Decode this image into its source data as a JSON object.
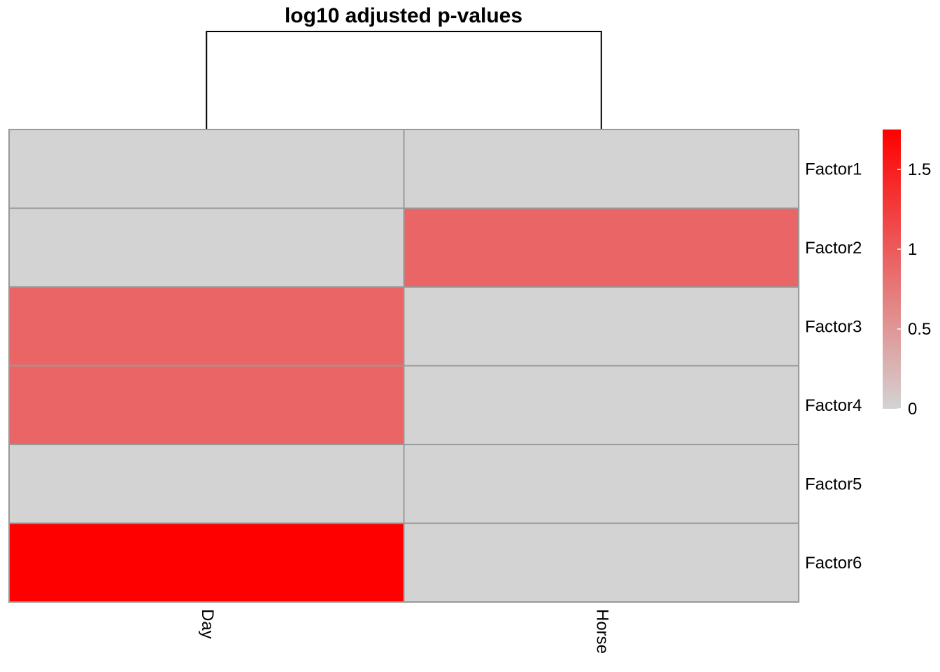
{
  "chart_data": {
    "type": "heatmap",
    "title": "log10 adjusted p-values",
    "rows": [
      "Factor1",
      "Factor2",
      "Factor3",
      "Factor4",
      "Factor5",
      "Factor6"
    ],
    "columns": [
      "Day",
      "Horse"
    ],
    "values": [
      [
        0.0,
        0.0
      ],
      [
        0.0,
        0.9
      ],
      [
        0.9,
        0.0
      ],
      [
        0.9,
        0.0
      ],
      [
        0.0,
        0.0
      ],
      [
        1.75,
        0.0
      ]
    ],
    "color_scale": {
      "low_color": "#d3d3d3",
      "high_color": "#ff0000",
      "min": 0,
      "max": 1.75
    },
    "legend": {
      "ticks": [
        {
          "value": 0,
          "label": "0"
        },
        {
          "value": 0.5,
          "label": "0.5"
        },
        {
          "value": 1,
          "label": "1"
        },
        {
          "value": 1.5,
          "label": "1.5"
        }
      ],
      "placement": "right"
    },
    "cell_border_color": "#999999",
    "column_dendrogram": true
  }
}
